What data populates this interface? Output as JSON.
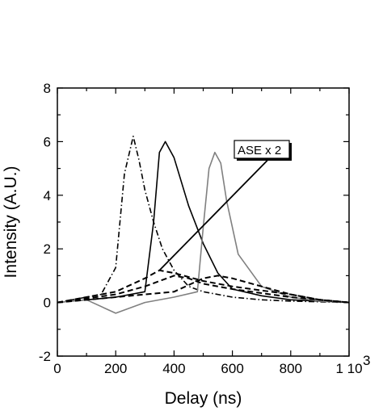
{
  "chart_data": {
    "type": "line",
    "title": "",
    "xlabel": "Delay (ns)",
    "ylabel": "Intensity (A.U.)",
    "xlim": [
      0,
      1000
    ],
    "ylim": [
      -2,
      8
    ],
    "x_ticks": [
      0,
      200,
      400,
      600,
      800,
      1000
    ],
    "x_tick_labels": [
      "0",
      "200",
      "400",
      "600",
      "800",
      "1 10"
    ],
    "x_tick_exponent": "3",
    "y_ticks": [
      -2,
      0,
      2,
      4,
      6,
      8
    ],
    "y_tick_labels": [
      "-2",
      "0",
      "2",
      "4",
      "6",
      "8"
    ],
    "grid": false,
    "annotation": {
      "text": "ASE x 2",
      "arrow_from": [
        720,
        5.3
      ],
      "arrow_to": [
        350,
        1.2
      ]
    },
    "series": [
      {
        "color": "#000000",
        "style": "dashdot",
        "x": [
          0,
          100,
          150,
          200,
          230,
          260,
          280,
          300,
          330,
          360,
          400,
          450,
          500,
          600,
          700,
          800,
          1000
        ],
        "y": [
          0,
          0.2,
          0.3,
          1.3,
          4.8,
          6.2,
          5.3,
          4.2,
          3.0,
          2.0,
          1.2,
          0.6,
          0.4,
          0.2,
          0.1,
          0.05,
          0.0
        ]
      },
      {
        "color": "#000000",
        "style": "solid",
        "x": [
          0,
          100,
          200,
          300,
          330,
          350,
          370,
          400,
          450,
          500,
          550,
          600,
          700,
          800,
          1000
        ],
        "y": [
          0,
          0.1,
          0.2,
          0.4,
          3.0,
          5.6,
          6.0,
          5.4,
          3.6,
          2.2,
          1.1,
          0.5,
          0.25,
          0.1,
          0.0
        ]
      },
      {
        "color": "#808080",
        "style": "solid",
        "x": [
          0,
          100,
          200,
          300,
          400,
          480,
          500,
          520,
          540,
          560,
          580,
          620,
          700,
          800,
          900,
          1000
        ],
        "y": [
          0,
          0.1,
          -0.4,
          0.0,
          0.2,
          0.4,
          2.8,
          5.0,
          5.6,
          5.2,
          3.8,
          1.8,
          0.6,
          0.2,
          0.05,
          0.0
        ]
      },
      {
        "color": "#000000",
        "style": "dashed",
        "x": [
          0,
          200,
          300,
          350,
          400,
          500,
          600,
          700,
          800,
          900,
          1000
        ],
        "y": [
          0,
          0.4,
          0.9,
          1.2,
          1.1,
          0.8,
          0.6,
          0.45,
          0.3,
          0.1,
          0.0
        ]
      },
      {
        "color": "#000000",
        "style": "dashed",
        "x": [
          0,
          200,
          300,
          400,
          450,
          500,
          600,
          700,
          800,
          900,
          1000
        ],
        "y": [
          0,
          0.3,
          0.6,
          1.0,
          0.9,
          0.7,
          0.5,
          0.35,
          0.2,
          0.1,
          0.0
        ]
      },
      {
        "color": "#000000",
        "style": "dashed",
        "x": [
          0,
          200,
          400,
          500,
          550,
          600,
          700,
          800,
          900,
          1000
        ],
        "y": [
          0,
          0.2,
          0.4,
          0.9,
          1.0,
          0.9,
          0.6,
          0.3,
          0.1,
          0.0
        ]
      }
    ]
  }
}
